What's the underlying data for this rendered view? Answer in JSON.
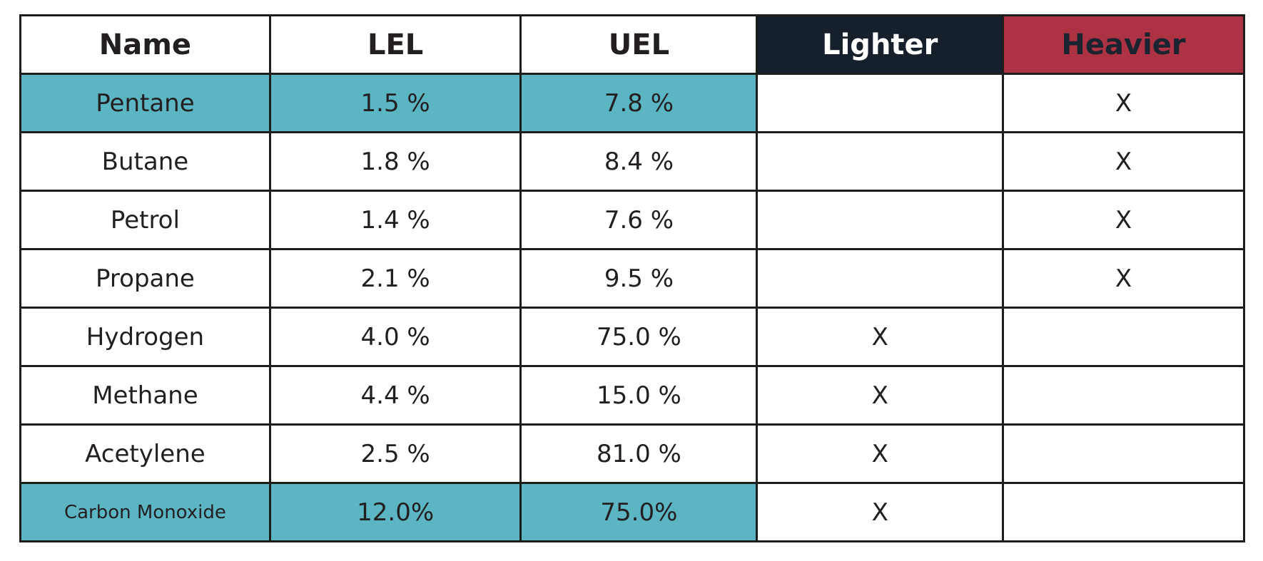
{
  "table": {
    "columns": [
      {
        "key": "name",
        "label": "Name",
        "header_bg": "#ffffff",
        "header_fg": "#231f20"
      },
      {
        "key": "lel",
        "label": "LEL",
        "header_bg": "#ffffff",
        "header_fg": "#231f20"
      },
      {
        "key": "uel",
        "label": "UEL",
        "header_bg": "#ffffff",
        "header_fg": "#231f20"
      },
      {
        "key": "lighter",
        "label": "Lighter",
        "header_bg": "#16202d",
        "header_fg": "#ffffff"
      },
      {
        "key": "heavier",
        "label": "Heavier",
        "header_bg": "#ad3344",
        "header_fg": "#1a2430"
      }
    ],
    "rows": [
      {
        "name": "Pentane",
        "lel": "1.5 %",
        "uel": "7.8 %",
        "lighter": "",
        "heavier": "X",
        "highlight": true,
        "small_name": false
      },
      {
        "name": "Butane",
        "lel": "1.8 %",
        "uel": "8.4 %",
        "lighter": "",
        "heavier": "X",
        "highlight": false,
        "small_name": false
      },
      {
        "name": "Petrol",
        "lel": "1.4 %",
        "uel": "7.6 %",
        "lighter": "",
        "heavier": "X",
        "highlight": false,
        "small_name": false
      },
      {
        "name": "Propane",
        "lel": "2.1 %",
        "uel": "9.5 %",
        "lighter": "",
        "heavier": "X",
        "highlight": false,
        "small_name": false
      },
      {
        "name": "Hydrogen",
        "lel": "4.0 %",
        "uel": "75.0 %",
        "lighter": "X",
        "heavier": "",
        "highlight": false,
        "small_name": false
      },
      {
        "name": "Methane",
        "lel": "4.4 %",
        "uel": "15.0 %",
        "lighter": "X",
        "heavier": "",
        "highlight": false,
        "small_name": false
      },
      {
        "name": "Acetylene",
        "lel": "2.5 %",
        "uel": "81.0 %",
        "lighter": "X",
        "heavier": "",
        "highlight": false,
        "small_name": false
      },
      {
        "name": "Carbon Monoxide",
        "lel": "12.0%",
        "uel": "75.0%",
        "lighter": "X",
        "heavier": "",
        "highlight": true,
        "small_name": true
      }
    ],
    "colors": {
      "highlight_teal": "#5bb5c3",
      "lighter_header_bg": "#16202d",
      "heavier_header_bg": "#ad3344",
      "border": "#1d1d1b",
      "text": "#231f20"
    }
  },
  "chart_data": {
    "type": "table",
    "title": "",
    "columns": [
      "Name",
      "LEL",
      "UEL",
      "Lighter",
      "Heavier"
    ],
    "rows": [
      [
        "Pentane",
        "1.5 %",
        "7.8 %",
        "",
        "X"
      ],
      [
        "Butane",
        "1.8 %",
        "8.4 %",
        "",
        "X"
      ],
      [
        "Petrol",
        "1.4 %",
        "7.6 %",
        "",
        "X"
      ],
      [
        "Propane",
        "2.1 %",
        "9.5 %",
        "",
        "X"
      ],
      [
        "Hydrogen",
        "4.0 %",
        "75.0 %",
        "X",
        ""
      ],
      [
        "Methane",
        "4.4 %",
        "15.0 %",
        "X",
        ""
      ],
      [
        "Acetylene",
        "2.5 %",
        "81.0 %",
        "X",
        ""
      ],
      [
        "Carbon Monoxide",
        "12.0%",
        "75.0%",
        "X",
        ""
      ]
    ],
    "highlighted_rows": [
      "Pentane",
      "Carbon Monoxide"
    ],
    "lel_values_percent": [
      1.5,
      1.8,
      1.4,
      2.1,
      4.0,
      4.4,
      2.5,
      12.0
    ],
    "uel_values_percent": [
      7.8,
      8.4,
      7.6,
      9.5,
      75.0,
      15.0,
      81.0,
      75.0
    ]
  }
}
